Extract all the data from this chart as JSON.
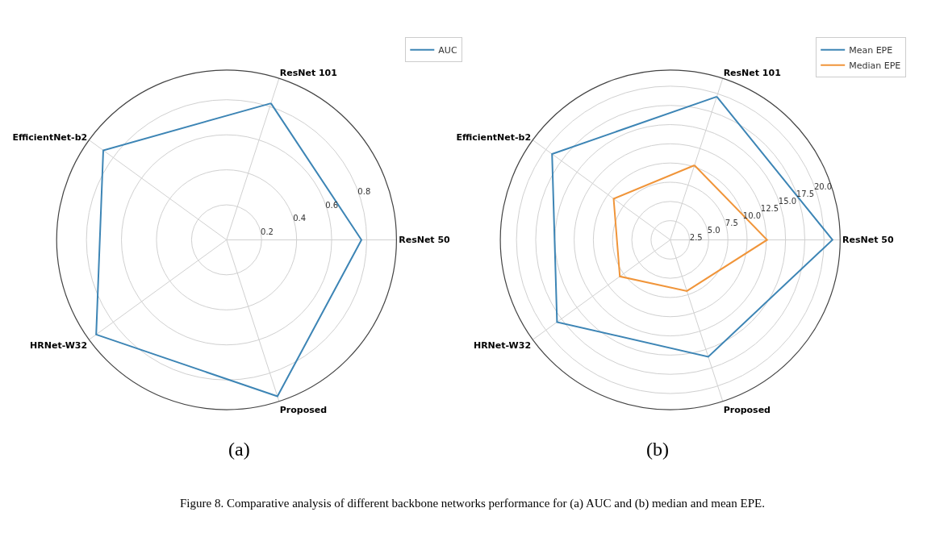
{
  "chart_data": [
    {
      "type": "radar",
      "categories": [
        "ResNet 101",
        "ResNet 50",
        "Proposed",
        "HRNet-W32",
        "EfficientNet-b2"
      ],
      "series": [
        {
          "name": "AUC",
          "color": "#3d85b5",
          "values": [
            0.82,
            0.77,
            0.94,
            0.92,
            0.87
          ]
        }
      ],
      "ylim": [
        0,
        0.97
      ],
      "yticks": [
        0.2,
        0.4,
        0.6,
        0.8
      ],
      "grid": true,
      "legend": "top right",
      "marker": "none",
      "line_style": "solid",
      "annotations": [
        "(a)"
      ]
    },
    {
      "type": "radar",
      "categories": [
        "ResNet 101",
        "ResNet 50",
        "Proposed",
        "HRNet-W32",
        "EfficientNet-b2"
      ],
      "series": [
        {
          "name": "Mean EPE",
          "color": "#3d85b5",
          "values": [
            19.6,
            21.1,
            16.0,
            18.2,
            19.0
          ]
        },
        {
          "name": "Median EPE",
          "color": "#f0953a",
          "values": [
            10.2,
            12.6,
            7.0,
            8.1,
            9.1
          ]
        }
      ],
      "ylim": [
        0,
        22.1
      ],
      "yticks": [
        2.5,
        {
          "value": 5,
          "label": "5.0"
        },
        7.5,
        {
          "value": 10,
          "label": "10.0"
        },
        12.5,
        {
          "value": 15,
          "label": "15.0"
        },
        17.5,
        {
          "value": 20,
          "label": "20.0"
        }
      ],
      "grid": true,
      "legend": "top right",
      "marker": "none",
      "line_style": "solid",
      "annotations": [
        "(b)",
        "Figure 8. Comparative analysis of different backbone networks performance for (a) AUC and (b) median and mean EPE."
      ]
    }
  ]
}
